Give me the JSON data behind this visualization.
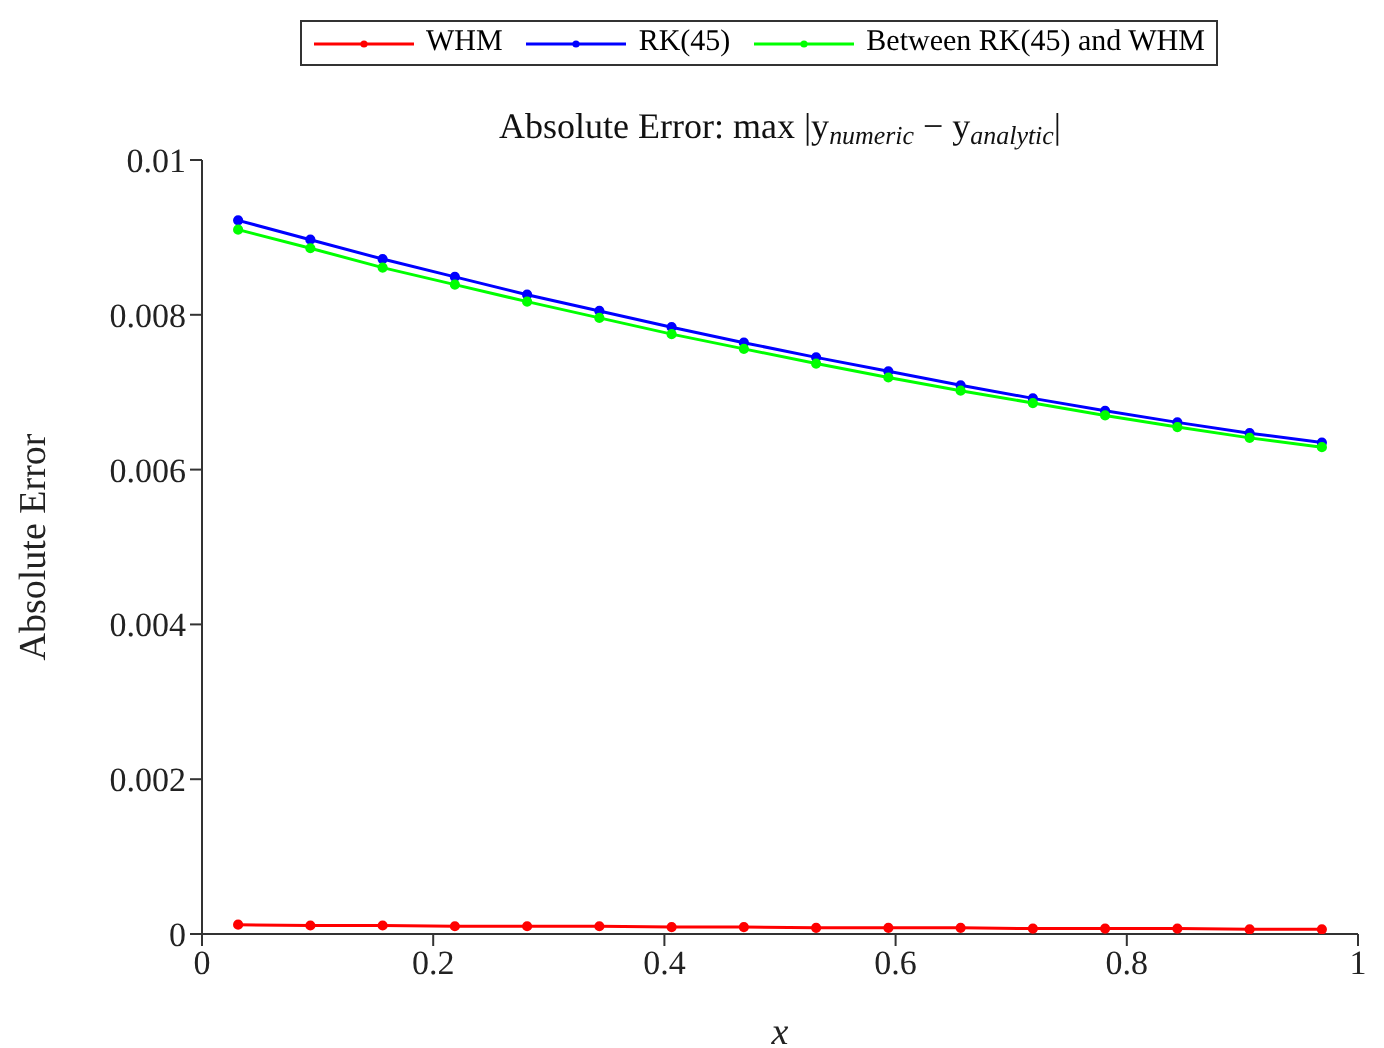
{
  "chart_data": {
    "type": "line",
    "title": "Absolute Error: max |y$_{numeric}$ − y$_{analytic}$|",
    "xlabel": "x",
    "ylabel": "Absolute Error",
    "x": [
      0.03125,
      0.09375,
      0.15625,
      0.21875,
      0.28125,
      0.34375,
      0.40625,
      0.46875,
      0.53125,
      0.59375,
      0.65625,
      0.71875,
      0.78125,
      0.84375,
      0.90625,
      0.96875
    ],
    "series": [
      {
        "name": "WHM",
        "color": "#ff0000",
        "values": [
          0.00012,
          0.00011,
          0.00011,
          0.0001,
          0.0001,
          0.0001,
          9e-05,
          9e-05,
          8e-05,
          8e-05,
          8e-05,
          7e-05,
          7e-05,
          7e-05,
          6e-05,
          6e-05
        ]
      },
      {
        "name": "RK(45)",
        "color": "#0000ff",
        "values": [
          0.00922,
          0.00897,
          0.00872,
          0.00849,
          0.00826,
          0.00805,
          0.00784,
          0.00764,
          0.00745,
          0.00727,
          0.00709,
          0.00692,
          0.00676,
          0.00661,
          0.00647,
          0.00635
        ]
      },
      {
        "name": "Between RK(45) and WHM",
        "color": "#00ff00",
        "values": [
          0.0091,
          0.00886,
          0.00861,
          0.00839,
          0.00817,
          0.00796,
          0.00775,
          0.00756,
          0.00737,
          0.00719,
          0.00702,
          0.00686,
          0.0067,
          0.00655,
          0.00641,
          0.00629
        ]
      }
    ],
    "xlim": [
      0,
      1
    ],
    "xticks": [
      0,
      0.2,
      0.4,
      0.6,
      0.8,
      1
    ],
    "ylim": [
      0,
      0.01
    ],
    "yticks": [
      0,
      0.002,
      0.004,
      0.006,
      0.008,
      0.01
    ],
    "grid": false,
    "legend": "top",
    "marker": "circle",
    "line_style": "solid"
  }
}
